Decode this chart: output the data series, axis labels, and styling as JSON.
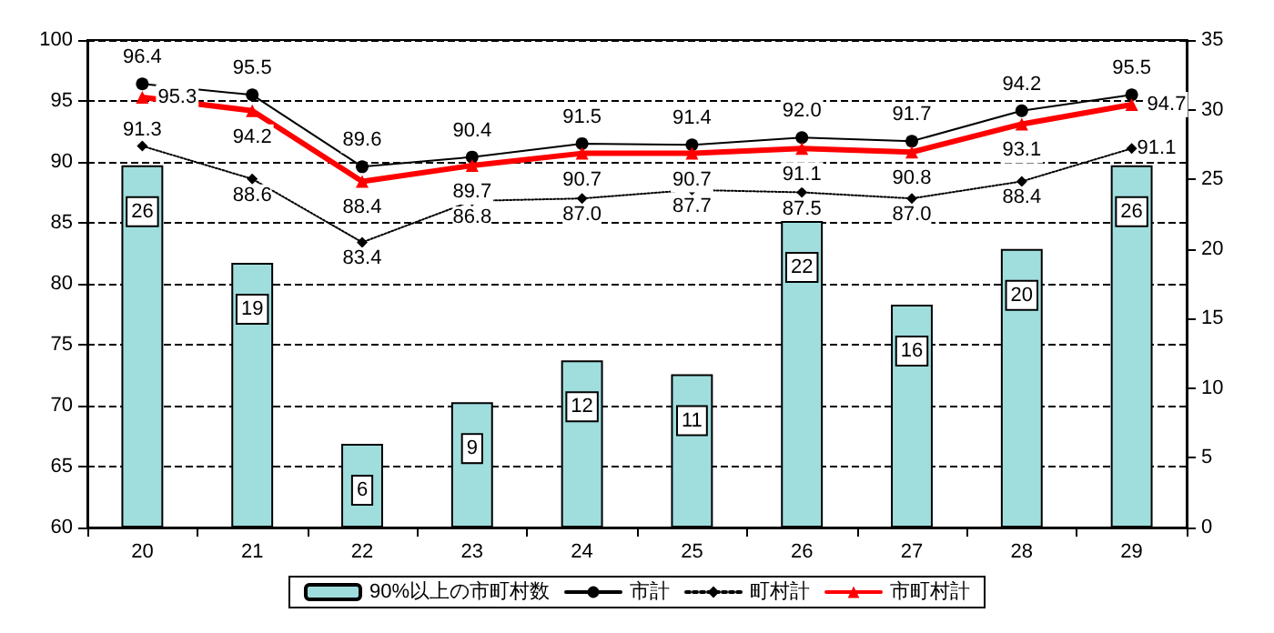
{
  "chart_data": {
    "type": "bar",
    "categories": [
      "20",
      "21",
      "22",
      "23",
      "24",
      "25",
      "26",
      "27",
      "28",
      "29"
    ],
    "series": [
      {
        "name": "90%以上の市町村数",
        "axis": "y2",
        "color": "#a0dede",
        "values": [
          26,
          19,
          6,
          9,
          12,
          11,
          22,
          16,
          20,
          26
        ]
      },
      {
        "name": "市計",
        "type": "line",
        "color": "#000000",
        "marker": "circle",
        "line_style": "solid",
        "values": [
          96.4,
          95.5,
          89.6,
          90.4,
          91.5,
          91.4,
          92.0,
          91.7,
          94.2,
          95.5
        ],
        "value_labels": [
          "96.4",
          "95.5",
          "89.6",
          "90.4",
          "91.5",
          "91.4",
          "92.0",
          "91.7",
          "94.2",
          "95.5"
        ]
      },
      {
        "name": "町村計",
        "type": "line",
        "color": "#000000",
        "marker": "diamond",
        "line_style": "dotted",
        "values": [
          91.3,
          88.6,
          83.4,
          86.8,
          87.0,
          87.7,
          87.5,
          87.0,
          88.4,
          91.1
        ],
        "value_labels": [
          "91.3",
          "88.6",
          "83.4",
          "86.8",
          "87.0",
          "87.7",
          "87.5",
          "87.0",
          "88.4",
          "91.1"
        ]
      },
      {
        "name": "市町村計",
        "type": "line",
        "color": "#ff0000",
        "marker": "triangle",
        "line_style": "solid",
        "values": [
          95.3,
          94.2,
          88.4,
          89.7,
          90.7,
          90.7,
          91.1,
          90.8,
          93.1,
          94.7
        ],
        "value_labels": [
          "95.3",
          "94.2",
          "88.4",
          "89.7",
          "90.7",
          "90.7",
          "91.1",
          "90.8",
          "93.1",
          "94.7"
        ]
      }
    ],
    "ylim": [
      60,
      100
    ],
    "yticks": [
      60,
      65,
      70,
      75,
      80,
      85,
      90,
      95,
      100
    ],
    "y2lim": [
      0,
      35
    ],
    "y2ticks": [
      0,
      5,
      10,
      15,
      20,
      25,
      30,
      35
    ],
    "grid": "y",
    "legend": "bottom",
    "data_labels": true
  }
}
